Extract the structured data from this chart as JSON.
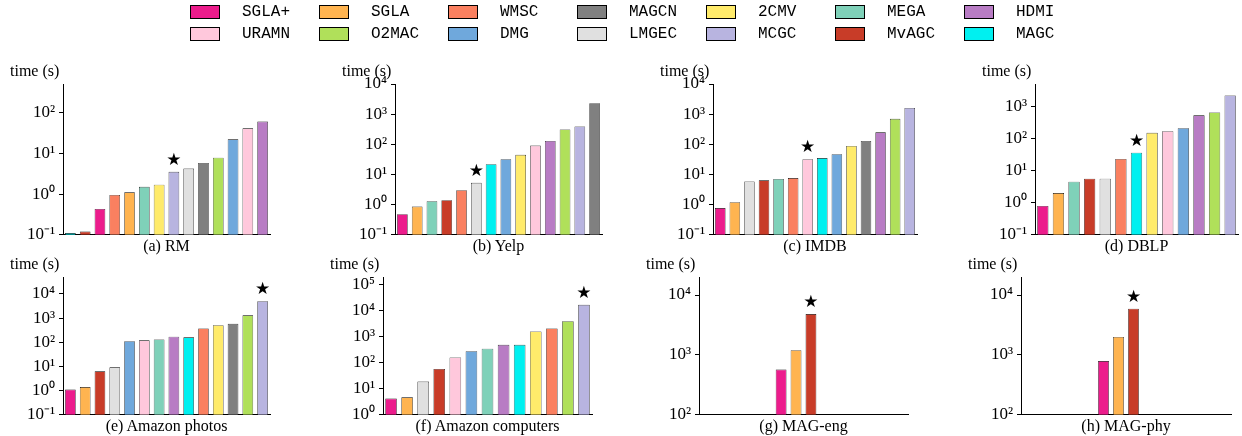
{
  "chart_data": [
    {
      "type": "bar",
      "xlabel": "(a) RM",
      "ylabel": "time (s)",
      "log": true,
      "tick_labels": "y",
      "legend": "top",
      "ylim": [
        0.1,
        500
      ],
      "yticks": [
        {
          "value": 0.1,
          "label": "10⁻¹"
        },
        {
          "value": 1,
          "label": "10⁰"
        },
        {
          "value": 10,
          "label": "10¹"
        },
        {
          "value": 100,
          "label": "10²"
        }
      ],
      "categories": [
        null,
        null,
        null,
        null,
        null,
        null,
        null,
        null,
        null,
        null,
        null,
        null,
        null,
        null
      ],
      "series": [
        {
          "name": "SGLA+",
          "color": "#ec1c8c",
          "values": [
            null,
            null,
            0.43,
            null,
            null,
            null,
            null,
            null,
            null,
            null,
            null,
            null,
            null,
            null
          ]
        },
        {
          "name": "SGLA",
          "color": "#ffb450",
          "values": [
            null,
            null,
            null,
            null,
            1.1,
            null,
            null,
            null,
            null,
            null,
            null,
            null,
            null,
            null
          ]
        },
        {
          "name": "WMSC",
          "color": "#fa8060",
          "values": [
            null,
            null,
            null,
            0.95,
            null,
            null,
            null,
            null,
            null,
            null,
            null,
            null,
            null,
            null
          ]
        },
        {
          "name": "MAGCN",
          "color": "#808080",
          "values": [
            null,
            null,
            null,
            null,
            null,
            null,
            null,
            null,
            null,
            5.8,
            null,
            null,
            null,
            null
          ]
        },
        {
          "name": "2CMV",
          "color": "#ffeb6b",
          "values": [
            null,
            null,
            null,
            null,
            null,
            null,
            1.7,
            null,
            null,
            null,
            null,
            null,
            null,
            null
          ]
        },
        {
          "name": "MEGA",
          "color": "#7fd1b9",
          "values": [
            null,
            null,
            null,
            null,
            null,
            1.5,
            null,
            null,
            null,
            null,
            null,
            null,
            null,
            null
          ]
        },
        {
          "name": "HDMI",
          "color": "#b87cc4",
          "values": [
            null,
            null,
            null,
            null,
            null,
            null,
            null,
            null,
            null,
            null,
            null,
            null,
            null,
            60
          ]
        },
        {
          "name": "URAMN",
          "color": "#ffc8dc",
          "values": [
            null,
            null,
            null,
            null,
            null,
            null,
            null,
            null,
            null,
            null,
            null,
            null,
            41,
            null
          ]
        },
        {
          "name": "O2MAC",
          "color": "#b0e05a",
          "values": [
            null,
            null,
            null,
            null,
            null,
            null,
            null,
            null,
            null,
            null,
            7.8,
            null,
            null,
            null
          ]
        },
        {
          "name": "DMG",
          "color": "#6fa8dc",
          "values": [
            null,
            null,
            null,
            null,
            null,
            null,
            null,
            null,
            null,
            null,
            null,
            22,
            null,
            null
          ]
        },
        {
          "name": "LMGEC",
          "color": "#e0e0e0",
          "values": [
            null,
            null,
            null,
            null,
            null,
            null,
            null,
            null,
            4.2,
            null,
            null,
            null,
            null,
            null
          ]
        },
        {
          "name": "MCGC",
          "color": "#b8b4e0",
          "values": [
            null,
            null,
            null,
            null,
            null,
            null,
            null,
            3.5,
            null,
            null,
            null,
            null,
            null,
            null
          ]
        },
        {
          "name": "MvAGC",
          "color": "#c83c28",
          "values": [
            null,
            0.12,
            null,
            null,
            null,
            null,
            null,
            null,
            null,
            null,
            null,
            null,
            null,
            null
          ]
        },
        {
          "name": "MAGC",
          "color": "#00f0f0",
          "values": [
            0.11,
            null,
            null,
            null,
            null,
            null,
            null,
            null,
            null,
            null,
            null,
            null,
            null,
            null
          ]
        }
      ],
      "annotations": [
        {
          "text": "★",
          "y": 3.5
        }
      ]
    },
    {
      "type": "bar",
      "xlabel": "(b) Yelp",
      "ylabel": "time (s)",
      "log": true,
      "tick_labels": "y",
      "ylim": [
        0.1,
        10000
      ],
      "yticks": [
        {
          "value": 0.1,
          "label": "10⁻¹"
        },
        {
          "value": 1,
          "label": "10⁰"
        },
        {
          "value": 10,
          "label": "10¹"
        },
        {
          "value": 100,
          "label": "10²"
        },
        {
          "value": 1000,
          "label": "10³"
        },
        {
          "value": 10000,
          "label": "10⁴"
        }
      ],
      "categories": [
        null,
        null,
        null,
        null,
        null,
        null,
        null,
        null,
        null,
        null,
        null,
        null,
        null,
        null
      ],
      "series": [
        {
          "name": "SGLA+",
          "color": "#ec1c8c",
          "values": [
            0.48,
            null,
            null,
            null,
            null,
            null,
            null,
            null,
            null,
            null,
            null,
            null,
            null,
            null
          ]
        },
        {
          "name": "SGLA",
          "color": "#ffb450",
          "values": [
            null,
            0.86,
            null,
            null,
            null,
            null,
            null,
            null,
            null,
            null,
            null,
            null,
            null,
            null
          ]
        },
        {
          "name": "WMSC",
          "color": "#fa8060",
          "values": [
            null,
            null,
            null,
            null,
            3.0,
            null,
            null,
            null,
            null,
            null,
            null,
            null,
            null,
            null
          ]
        },
        {
          "name": "MAGCN",
          "color": "#808080",
          "values": [
            null,
            null,
            null,
            null,
            null,
            null,
            null,
            null,
            null,
            null,
            null,
            null,
            null,
            2300
          ]
        },
        {
          "name": "2CMV",
          "color": "#ffeb6b",
          "values": [
            null,
            null,
            null,
            null,
            null,
            null,
            null,
            null,
            45,
            null,
            null,
            null,
            null,
            null
          ]
        },
        {
          "name": "MEGA",
          "color": "#7fd1b9",
          "values": [
            null,
            null,
            1.3,
            null,
            null,
            null,
            null,
            null,
            null,
            null,
            null,
            null,
            null,
            null
          ]
        },
        {
          "name": "HDMI",
          "color": "#b87cc4",
          "values": [
            null,
            null,
            null,
            null,
            null,
            null,
            null,
            null,
            null,
            null,
            130,
            null,
            null,
            null
          ]
        },
        {
          "name": "URAMN",
          "color": "#ffc8dc",
          "values": [
            null,
            null,
            null,
            null,
            null,
            null,
            null,
            null,
            null,
            91,
            null,
            null,
            null,
            null
          ]
        },
        {
          "name": "O2MAC",
          "color": "#b0e05a",
          "values": [
            null,
            null,
            null,
            null,
            null,
            null,
            null,
            null,
            null,
            null,
            null,
            310,
            null,
            null
          ]
        },
        {
          "name": "DMG",
          "color": "#6fa8dc",
          "values": [
            null,
            null,
            null,
            null,
            null,
            null,
            null,
            32,
            null,
            null,
            null,
            null,
            null,
            null
          ]
        },
        {
          "name": "LMGEC",
          "color": "#e0e0e0",
          "values": [
            null,
            null,
            null,
            null,
            null,
            5.3,
            null,
            null,
            null,
            null,
            null,
            null,
            null,
            null
          ]
        },
        {
          "name": "MCGC",
          "color": "#b8b4e0",
          "values": [
            null,
            null,
            null,
            null,
            null,
            null,
            null,
            null,
            null,
            null,
            null,
            null,
            390,
            null
          ]
        },
        {
          "name": "MvAGC",
          "color": "#c83c28",
          "values": [
            null,
            null,
            null,
            1.4,
            null,
            null,
            null,
            null,
            null,
            null,
            null,
            null,
            null,
            null
          ]
        },
        {
          "name": "MAGC",
          "color": "#00f0f0",
          "values": [
            null,
            null,
            null,
            null,
            null,
            null,
            22,
            null,
            null,
            null,
            null,
            null,
            null,
            null
          ]
        }
      ],
      "annotations": [
        {
          "text": "★",
          "y": 5.3
        }
      ]
    },
    {
      "type": "bar",
      "xlabel": "(c) IMDB",
      "ylabel": "time (s)",
      "log": true,
      "tick_labels": "y",
      "ylim": [
        0.1,
        10000
      ],
      "yticks": [
        {
          "value": 0.1,
          "label": "10⁻¹"
        },
        {
          "value": 1,
          "label": "10⁰"
        },
        {
          "value": 10,
          "label": "10¹"
        },
        {
          "value": 100,
          "label": "10²"
        },
        {
          "value": 1000,
          "label": "10³"
        },
        {
          "value": 10000,
          "label": "10⁴"
        }
      ],
      "categories": [
        null,
        null,
        null,
        null,
        null,
        null,
        null,
        null,
        null,
        null,
        null,
        null,
        null,
        null
      ],
      "series": [
        {
          "name": "SGLA+",
          "color": "#ec1c8c",
          "values": [
            0.77,
            null,
            null,
            null,
            null,
            null,
            null,
            null,
            null,
            null,
            null,
            null,
            null,
            null
          ]
        },
        {
          "name": "SGLA",
          "color": "#ffb450",
          "values": [
            null,
            1.2,
            null,
            null,
            null,
            null,
            null,
            null,
            null,
            null,
            null,
            null,
            null,
            null
          ]
        },
        {
          "name": "WMSC",
          "color": "#fa8060",
          "values": [
            null,
            null,
            null,
            null,
            null,
            7.6,
            null,
            null,
            null,
            null,
            null,
            null,
            null,
            null
          ]
        },
        {
          "name": "MAGCN",
          "color": "#808080",
          "values": [
            null,
            null,
            null,
            null,
            null,
            null,
            null,
            null,
            null,
            null,
            130,
            null,
            null,
            null
          ]
        },
        {
          "name": "2CMV",
          "color": "#ffeb6b",
          "values": [
            null,
            null,
            null,
            null,
            null,
            null,
            null,
            null,
            null,
            88,
            null,
            null,
            null,
            null
          ]
        },
        {
          "name": "MEGA",
          "color": "#7fd1b9",
          "values": [
            null,
            null,
            null,
            null,
            7.1,
            null,
            null,
            null,
            null,
            null,
            null,
            null,
            null,
            null
          ]
        },
        {
          "name": "HDMI",
          "color": "#b87cc4",
          "values": [
            null,
            null,
            null,
            null,
            null,
            null,
            null,
            null,
            null,
            null,
            null,
            250,
            null,
            null
          ]
        },
        {
          "name": "URAMN",
          "color": "#ffc8dc",
          "values": [
            null,
            null,
            null,
            null,
            null,
            null,
            32,
            null,
            null,
            null,
            null,
            null,
            null,
            null
          ]
        },
        {
          "name": "O2MAC",
          "color": "#b0e05a",
          "values": [
            null,
            null,
            null,
            null,
            null,
            null,
            null,
            null,
            null,
            null,
            null,
            null,
            700,
            null
          ]
        },
        {
          "name": "DMG",
          "color": "#6fa8dc",
          "values": [
            null,
            null,
            null,
            null,
            null,
            null,
            null,
            null,
            47,
            null,
            null,
            null,
            null,
            null
          ]
        },
        {
          "name": "LMGEC",
          "color": "#e0e0e0",
          "values": [
            null,
            null,
            5.9,
            null,
            null,
            null,
            null,
            null,
            null,
            null,
            null,
            null,
            null,
            null
          ]
        },
        {
          "name": "MCGC",
          "color": "#b8b4e0",
          "values": [
            null,
            null,
            null,
            null,
            null,
            null,
            null,
            null,
            null,
            null,
            null,
            null,
            null,
            1600
          ]
        },
        {
          "name": "MvAGC",
          "color": "#c83c28",
          "values": [
            null,
            null,
            null,
            6.4,
            null,
            null,
            null,
            null,
            null,
            null,
            null,
            null,
            null,
            null
          ]
        },
        {
          "name": "MAGC",
          "color": "#00f0f0",
          "values": [
            null,
            null,
            null,
            null,
            null,
            null,
            null,
            35,
            null,
            null,
            null,
            null,
            null,
            null
          ]
        }
      ],
      "annotations": [
        {
          "text": "★",
          "y": 32
        }
      ]
    },
    {
      "type": "bar",
      "xlabel": "(d) DBLP",
      "ylabel": "time (s)",
      "log": true,
      "tick_labels": "y",
      "ylim": [
        0.1,
        5000
      ],
      "yticks": [
        {
          "value": 0.1,
          "label": "10⁻¹"
        },
        {
          "value": 1,
          "label": "10⁰"
        },
        {
          "value": 10,
          "label": "10¹"
        },
        {
          "value": 100,
          "label": "10²"
        },
        {
          "value": 1000,
          "label": "10³"
        }
      ],
      "categories": [
        null,
        null,
        null,
        null,
        null,
        null,
        null,
        null,
        null,
        null,
        null,
        null,
        null
      ],
      "series": [
        {
          "name": "SGLA+",
          "color": "#ec1c8c",
          "values": [
            0.79,
            null,
            null,
            null,
            null,
            null,
            null,
            null,
            null,
            null,
            null,
            null,
            null
          ]
        },
        {
          "name": "SGLA",
          "color": "#ffb450",
          "values": [
            null,
            2.0,
            null,
            null,
            null,
            null,
            null,
            null,
            null,
            null,
            null,
            null,
            null
          ]
        },
        {
          "name": "WMSC",
          "color": "#fa8060",
          "values": [
            null,
            null,
            null,
            null,
            null,
            23,
            null,
            null,
            null,
            null,
            null,
            null,
            null
          ]
        },
        {
          "name": "2CMV",
          "color": "#ffeb6b",
          "values": [
            null,
            null,
            null,
            null,
            null,
            null,
            null,
            150,
            null,
            null,
            null,
            null,
            null
          ]
        },
        {
          "name": "MEGA",
          "color": "#7fd1b9",
          "values": [
            null,
            null,
            4.5,
            null,
            null,
            null,
            null,
            null,
            null,
            null,
            null,
            null,
            null
          ]
        },
        {
          "name": "HDMI",
          "color": "#b87cc4",
          "values": [
            null,
            null,
            null,
            null,
            null,
            null,
            null,
            null,
            null,
            null,
            530,
            null,
            null
          ]
        },
        {
          "name": "URAMN",
          "color": "#ffc8dc",
          "values": [
            null,
            null,
            null,
            null,
            null,
            null,
            null,
            null,
            170,
            null,
            null,
            null,
            null
          ]
        },
        {
          "name": "O2MAC",
          "color": "#b0e05a",
          "values": [
            null,
            null,
            null,
            null,
            null,
            null,
            null,
            null,
            null,
            null,
            null,
            650,
            null
          ]
        },
        {
          "name": "DMG",
          "color": "#6fa8dc",
          "values": [
            null,
            null,
            null,
            null,
            null,
            null,
            null,
            null,
            null,
            210,
            null,
            null,
            null
          ]
        },
        {
          "name": "LMGEC",
          "color": "#e0e0e0",
          "values": [
            null,
            null,
            null,
            null,
            5.6,
            null,
            null,
            null,
            null,
            null,
            null,
            null,
            null
          ]
        },
        {
          "name": "MCGC",
          "color": "#b8b4e0",
          "values": [
            null,
            null,
            null,
            null,
            null,
            null,
            null,
            null,
            null,
            null,
            null,
            null,
            2200
          ]
        },
        {
          "name": "MvAGC",
          "color": "#c83c28",
          "values": [
            null,
            null,
            null,
            5.6,
            null,
            null,
            null,
            null,
            null,
            null,
            null,
            null,
            null
          ]
        },
        {
          "name": "MAGC",
          "color": "#00f0f0",
          "values": [
            null,
            null,
            null,
            null,
            null,
            null,
            36,
            null,
            null,
            null,
            null,
            null,
            null
          ]
        }
      ],
      "annotations": [
        {
          "text": "★",
          "y": 36
        }
      ]
    },
    {
      "type": "bar",
      "xlabel": "(e) Amazon photos",
      "ylabel": "time (s)",
      "log": true,
      "tick_labels": "y",
      "ylim": [
        0.1,
        50000
      ],
      "yticks": [
        {
          "value": 0.1,
          "label": "10⁻¹"
        },
        {
          "value": 1,
          "label": "10⁰"
        },
        {
          "value": 10,
          "label": "10¹"
        },
        {
          "value": 100,
          "label": "10²"
        },
        {
          "value": 1000,
          "label": "10³"
        },
        {
          "value": 10000,
          "label": "10⁴"
        }
      ],
      "categories": [
        null,
        null,
        null,
        null,
        null,
        null,
        null,
        null,
        null,
        null,
        null,
        null,
        null,
        null
      ],
      "series": [
        {
          "name": "SGLA+",
          "color": "#ec1c8c",
          "values": [
            1.1,
            null,
            null,
            null,
            null,
            null,
            null,
            null,
            null,
            null,
            null,
            null,
            null,
            null
          ]
        },
        {
          "name": "SGLA",
          "color": "#ffb450",
          "values": [
            null,
            1.4,
            null,
            null,
            null,
            null,
            null,
            null,
            null,
            null,
            null,
            null,
            null,
            null
          ]
        },
        {
          "name": "WMSC",
          "color": "#fa8060",
          "values": [
            null,
            null,
            null,
            null,
            null,
            null,
            null,
            null,
            null,
            370,
            null,
            null,
            null,
            null
          ]
        },
        {
          "name": "MAGCN",
          "color": "#808080",
          "values": [
            null,
            null,
            null,
            null,
            null,
            null,
            null,
            null,
            null,
            null,
            null,
            580,
            null,
            null
          ]
        },
        {
          "name": "2CMV",
          "color": "#ffeb6b",
          "values": [
            null,
            null,
            null,
            null,
            null,
            null,
            null,
            null,
            null,
            null,
            510,
            null,
            null,
            null
          ]
        },
        {
          "name": "MEGA",
          "color": "#7fd1b9",
          "values": [
            null,
            null,
            null,
            null,
            null,
            null,
            130,
            null,
            null,
            null,
            null,
            null,
            null,
            null
          ]
        },
        {
          "name": "HDMI",
          "color": "#b87cc4",
          "values": [
            null,
            null,
            null,
            null,
            null,
            null,
            null,
            170,
            null,
            null,
            null,
            null,
            null,
            null
          ]
        },
        {
          "name": "URAMN",
          "color": "#ffc8dc",
          "values": [
            null,
            null,
            null,
            null,
            null,
            120,
            null,
            null,
            null,
            null,
            null,
            null,
            null,
            null
          ]
        },
        {
          "name": "O2MAC",
          "color": "#b0e05a",
          "values": [
            null,
            null,
            null,
            null,
            null,
            null,
            null,
            null,
            null,
            null,
            null,
            null,
            1300,
            null
          ]
        },
        {
          "name": "DMG",
          "color": "#6fa8dc",
          "values": [
            null,
            null,
            null,
            null,
            110,
            null,
            null,
            null,
            null,
            null,
            null,
            null,
            null,
            null
          ]
        },
        {
          "name": "LMGEC",
          "color": "#e0e0e0",
          "values": [
            null,
            null,
            null,
            9.2,
            null,
            null,
            null,
            null,
            null,
            null,
            null,
            null,
            null,
            null
          ]
        },
        {
          "name": "MCGC",
          "color": "#b8b4e0",
          "values": [
            null,
            null,
            null,
            null,
            null,
            null,
            null,
            null,
            null,
            null,
            null,
            null,
            null,
            5000
          ]
        },
        {
          "name": "MvAGC",
          "color": "#c83c28",
          "values": [
            null,
            null,
            6.3,
            null,
            null,
            null,
            null,
            null,
            null,
            null,
            null,
            null,
            null,
            null
          ]
        },
        {
          "name": "MAGC",
          "color": "#00f0f0",
          "values": [
            null,
            null,
            null,
            null,
            null,
            null,
            null,
            null,
            160,
            null,
            null,
            null,
            null,
            null
          ]
        }
      ],
      "annotations": [
        {
          "text": "★",
          "y": 5000
        }
      ]
    },
    {
      "type": "bar",
      "xlabel": "(f) Amazon computers",
      "ylabel": "time (s)",
      "log": true,
      "tick_labels": "y",
      "ylim": [
        1,
        200000
      ],
      "yticks": [
        {
          "value": 1,
          "label": "10⁰"
        },
        {
          "value": 10,
          "label": "10¹"
        },
        {
          "value": 100,
          "label": "10²"
        },
        {
          "value": 1000,
          "label": "10³"
        },
        {
          "value": 10000,
          "label": "10⁴"
        },
        {
          "value": 100000,
          "label": "10⁵"
        }
      ],
      "categories": [
        null,
        null,
        null,
        null,
        null,
        null,
        null,
        null,
        null,
        null,
        null,
        null,
        null
      ],
      "series": [
        {
          "name": "SGLA+",
          "color": "#ec1c8c",
          "values": [
            4.2,
            null,
            null,
            null,
            null,
            null,
            null,
            null,
            null,
            null,
            null,
            null,
            null
          ]
        },
        {
          "name": "SGLA",
          "color": "#ffb450",
          "values": [
            null,
            4.7,
            null,
            null,
            null,
            null,
            null,
            null,
            null,
            null,
            null,
            null,
            null
          ]
        },
        {
          "name": "WMSC",
          "color": "#fa8060",
          "values": [
            null,
            null,
            null,
            null,
            null,
            null,
            null,
            null,
            null,
            null,
            2100,
            null,
            null
          ]
        },
        {
          "name": "2CMV",
          "color": "#ffeb6b",
          "values": [
            null,
            null,
            null,
            null,
            null,
            null,
            null,
            null,
            null,
            1600,
            null,
            null,
            null
          ]
        },
        {
          "name": "MEGA",
          "color": "#7fd1b9",
          "values": [
            null,
            null,
            null,
            null,
            null,
            null,
            350,
            null,
            null,
            null,
            null,
            null,
            null
          ]
        },
        {
          "name": "HDMI",
          "color": "#b87cc4",
          "values": [
            null,
            null,
            null,
            null,
            null,
            null,
            null,
            490,
            null,
            null,
            null,
            null,
            null
          ]
        },
        {
          "name": "URAMN",
          "color": "#ffc8dc",
          "values": [
            null,
            null,
            null,
            null,
            160,
            null,
            null,
            null,
            null,
            null,
            null,
            null,
            null
          ]
        },
        {
          "name": "O2MAC",
          "color": "#b0e05a",
          "values": [
            null,
            null,
            null,
            null,
            null,
            null,
            null,
            null,
            null,
            null,
            null,
            4000,
            null
          ]
        },
        {
          "name": "DMG",
          "color": "#6fa8dc",
          "values": [
            null,
            null,
            null,
            null,
            null,
            280,
            null,
            null,
            null,
            null,
            null,
            null,
            null
          ]
        },
        {
          "name": "LMGEC",
          "color": "#e0e0e0",
          "values": [
            null,
            null,
            19,
            null,
            null,
            null,
            null,
            null,
            null,
            null,
            null,
            null,
            null
          ]
        },
        {
          "name": "MCGC",
          "color": "#b8b4e0",
          "values": [
            null,
            null,
            null,
            null,
            null,
            null,
            null,
            null,
            null,
            null,
            null,
            null,
            17000
          ]
        },
        {
          "name": "MvAGC",
          "color": "#c83c28",
          "values": [
            null,
            null,
            null,
            58,
            null,
            null,
            null,
            null,
            null,
            null,
            null,
            null,
            null
          ]
        },
        {
          "name": "MAGC",
          "color": "#00f0f0",
          "values": [
            null,
            null,
            null,
            null,
            null,
            null,
            null,
            null,
            490,
            null,
            null,
            null,
            null
          ]
        }
      ],
      "annotations": [
        {
          "text": "★",
          "y": 17000
        }
      ]
    },
    {
      "type": "bar",
      "xlabel": "(g) MAG-eng",
      "ylabel": "time (s)",
      "log": true,
      "tick_labels": "y",
      "ylim": [
        100,
        20000
      ],
      "yticks": [
        {
          "value": 100,
          "label": "10²"
        },
        {
          "value": 1000,
          "label": "10³"
        },
        {
          "value": 10000,
          "label": "10⁴"
        }
      ],
      "categories": [
        null,
        null,
        null,
        null,
        null,
        null,
        null,
        null,
        null,
        null,
        null,
        null,
        null,
        null
      ],
      "series": [
        {
          "name": "SGLA+",
          "color": "#ec1c8c",
          "values": [
            null,
            null,
            null,
            null,
            null,
            570,
            null,
            null,
            null,
            null,
            null,
            null,
            null,
            null
          ]
        },
        {
          "name": "SGLA",
          "color": "#ffb450",
          "values": [
            null,
            null,
            null,
            null,
            null,
            null,
            1200,
            null,
            null,
            null,
            null,
            null,
            null,
            null
          ]
        },
        {
          "name": "MvAGC",
          "color": "#c83c28",
          "values": [
            null,
            null,
            null,
            null,
            null,
            null,
            null,
            4800,
            null,
            null,
            null,
            null,
            null,
            null
          ]
        }
      ],
      "annotations": [
        {
          "text": "★",
          "y": 4800
        }
      ]
    },
    {
      "type": "bar",
      "xlabel": "(h) MAG-phy",
      "ylabel": "time (s)",
      "log": true,
      "tick_labels": "y",
      "ylim": [
        100,
        20000
      ],
      "yticks": [
        {
          "value": 100,
          "label": "10²"
        },
        {
          "value": 1000,
          "label": "10³"
        },
        {
          "value": 10000,
          "label": "10⁴"
        }
      ],
      "categories": [
        null,
        null,
        null,
        null,
        null,
        null,
        null,
        null,
        null,
        null,
        null,
        null,
        null,
        null
      ],
      "series": [
        {
          "name": "SGLA+",
          "color": "#ec1c8c",
          "values": [
            null,
            null,
            null,
            null,
            null,
            790,
            null,
            null,
            null,
            null,
            null,
            null,
            null,
            null
          ]
        },
        {
          "name": "SGLA",
          "color": "#ffb450",
          "values": [
            null,
            null,
            null,
            null,
            null,
            null,
            2000,
            null,
            null,
            null,
            null,
            null,
            null,
            null
          ]
        },
        {
          "name": "MvAGC",
          "color": "#c83c28",
          "values": [
            null,
            null,
            null,
            null,
            null,
            null,
            null,
            5900,
            null,
            null,
            null,
            null,
            null,
            null
          ]
        }
      ],
      "annotations": [
        {
          "text": "★",
          "y": 5900
        }
      ]
    }
  ]
}
